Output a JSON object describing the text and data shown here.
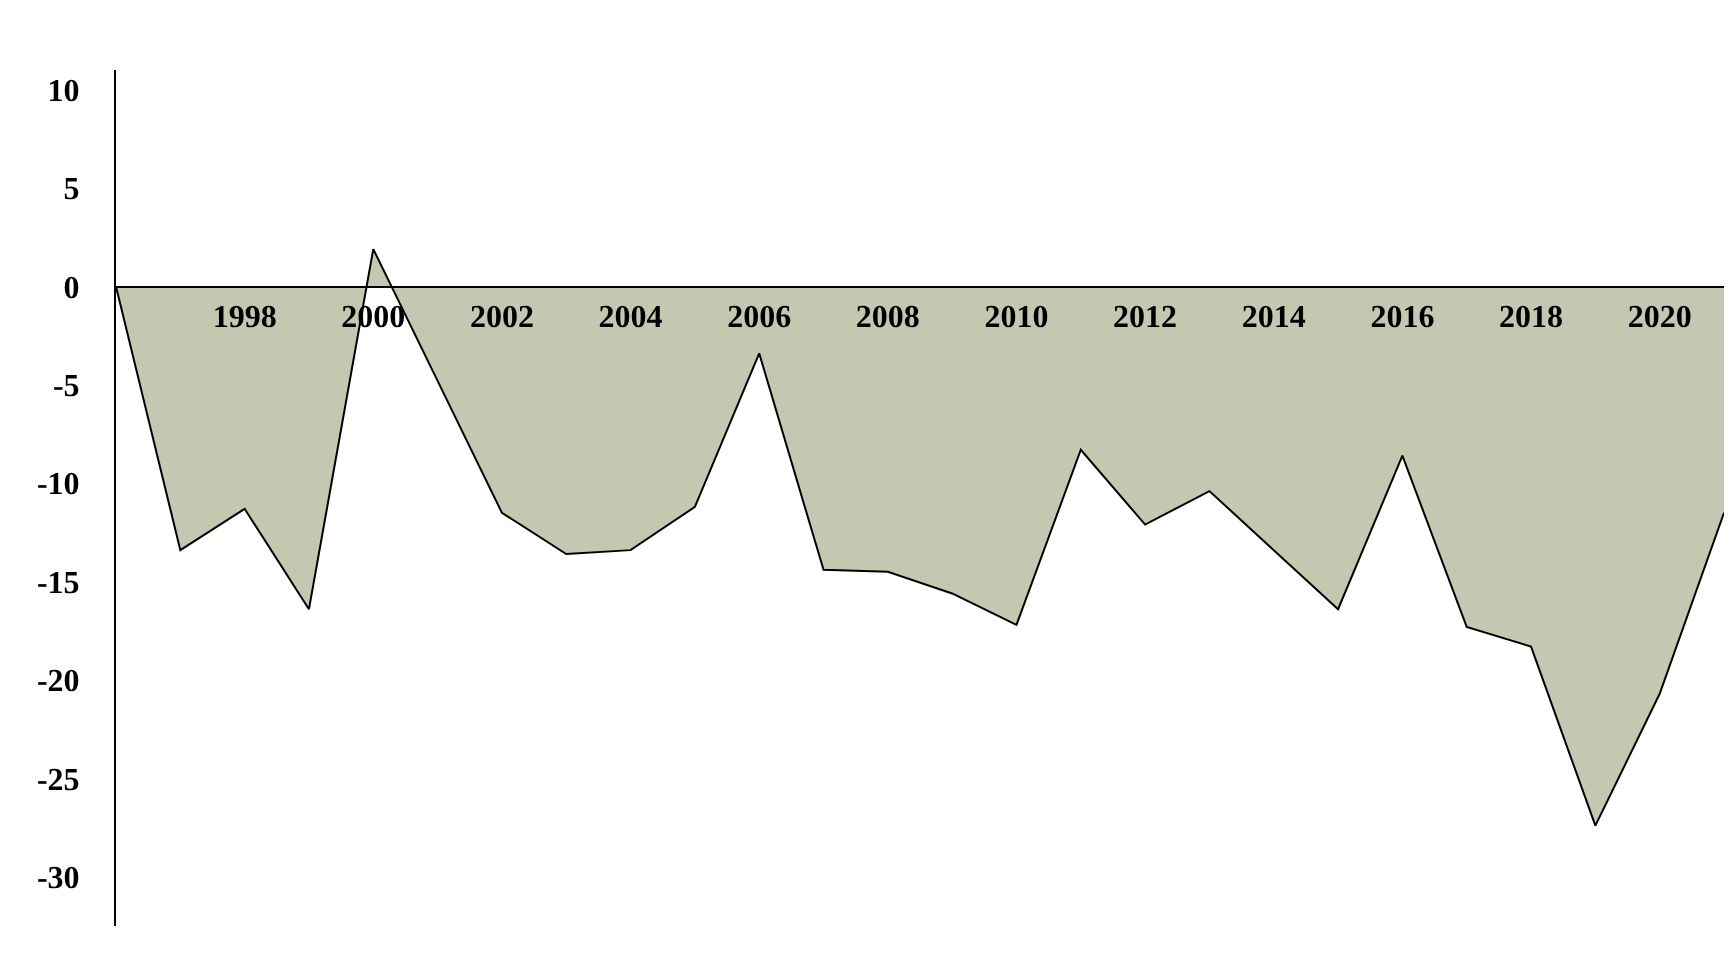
{
  "chart_data": {
    "type": "area",
    "x": [
      1996,
      1997,
      1998,
      1999,
      2000,
      2001,
      2002,
      2003,
      2004,
      2005,
      2006,
      2007,
      2008,
      2009,
      2010,
      2011,
      2012,
      2013,
      2014,
      2015,
      2016,
      2017,
      2018,
      2019,
      2020,
      2021
    ],
    "series": [
      {
        "color": "#c4c8b1",
        "values": [
          0,
          -13.4,
          -11.3,
          -16.4,
          1.9,
          -4.8,
          -11.5,
          -13.6,
          -13.4,
          -11.2,
          -3.4,
          -14.4,
          -14.5,
          -15.6,
          -17.2,
          -8.3,
          -12.1,
          -10.4,
          -13.4,
          -16.4,
          -8.6,
          -17.3,
          -18.3,
          -27.4,
          -20.7,
          -11.5
        ]
      }
    ],
    "xlim": [
      1996,
      2021
    ],
    "xticks": [
      1998,
      2000,
      2002,
      2004,
      2006,
      2008,
      2010,
      2012,
      2014,
      2016,
      2018,
      2020
    ],
    "ylim": [
      -32.5,
      11
    ],
    "yticks": [
      10,
      5,
      0,
      -5,
      -10,
      -15,
      -20,
      -25,
      -30
    ],
    "marker": "none",
    "line_style": "solid"
  }
}
